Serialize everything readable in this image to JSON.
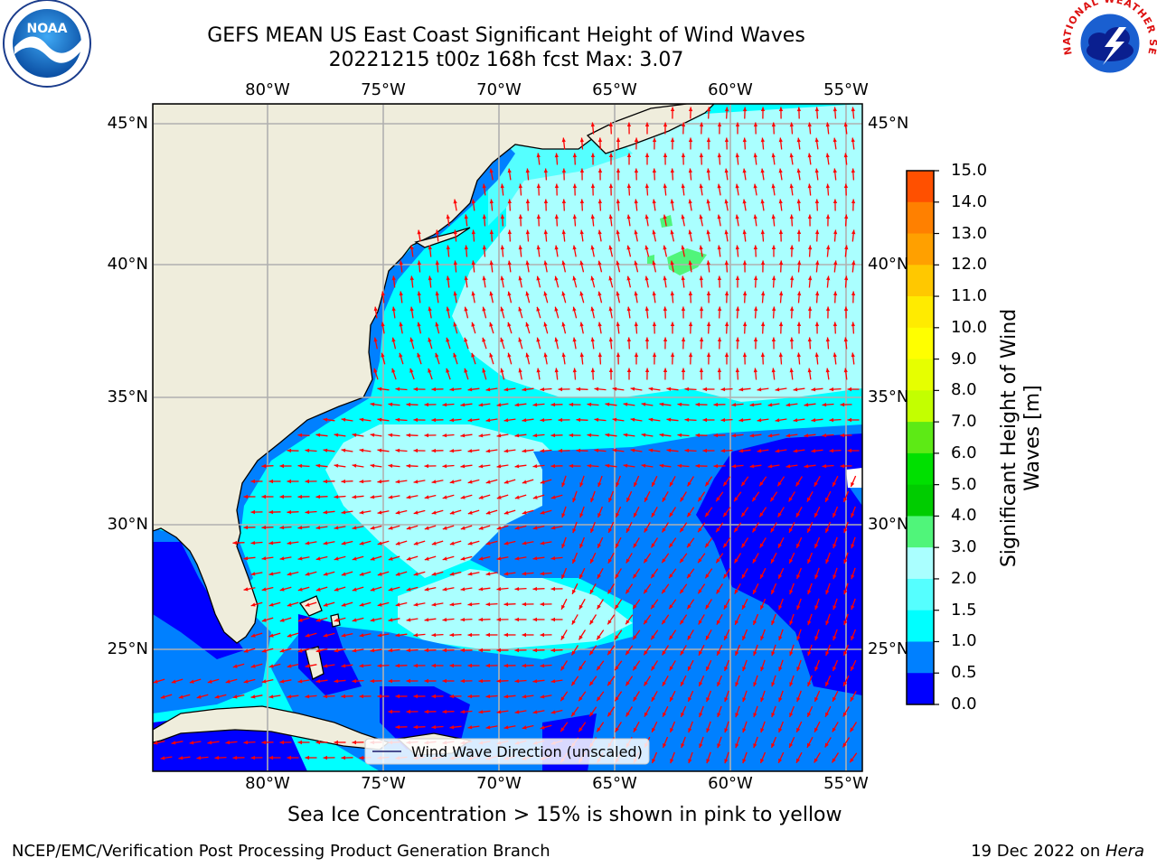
{
  "header": {
    "title": "GEFS MEAN US East Coast Significant Height of Wind Waves",
    "subtitle": "20221215 t00z 168h fcst   Max: 3.07"
  },
  "logos": {
    "left": "NOAA",
    "right": "NATIONAL WEATHER SERVICE"
  },
  "map": {
    "lon_labels": [
      "80°W",
      "75°W",
      "70°W",
      "65°W",
      "60°W",
      "55°W"
    ],
    "lat_labels": [
      "45°N",
      "40°N",
      "35°N",
      "30°N",
      "25°N"
    ],
    "legend_label": "Wind Wave Direction (unscaled)",
    "colors": {
      "land": "#efeddc",
      "arrow": "#ff0000",
      "grid": "#b0b0b0"
    }
  },
  "colorbar": {
    "title_line1": "Significant Height of Wind",
    "title_line2": "Waves [m]",
    "ticks": [
      "15.0",
      "14.0",
      "13.0",
      "12.0",
      "11.0",
      "10.0",
      "9.0",
      "8.0",
      "7.0",
      "6.0",
      "5.0",
      "4.0",
      "3.0",
      "2.0",
      "1.5",
      "1.0",
      "0.5",
      "0.0"
    ],
    "colors": [
      "#ff0000",
      "#ff2000",
      "#ff5000",
      "#ff8000",
      "#ffa000",
      "#ffc800",
      "#ffeb00",
      "#ffff00",
      "#e6ff00",
      "#c3ff00",
      "#5dea15",
      "#00e000",
      "#00cc00",
      "#50f57a",
      "#aaffff",
      "#55ffff",
      "#00ffff",
      "#0080ff",
      "#0000ff"
    ]
  },
  "note": "Sea Ice Concentration > 15% is shown in pink to yellow",
  "footer": {
    "left": "NCEP/EMC/Verification Post Processing Product Generation Branch",
    "date": "19 Dec 2022 on ",
    "host": "Hera"
  }
}
